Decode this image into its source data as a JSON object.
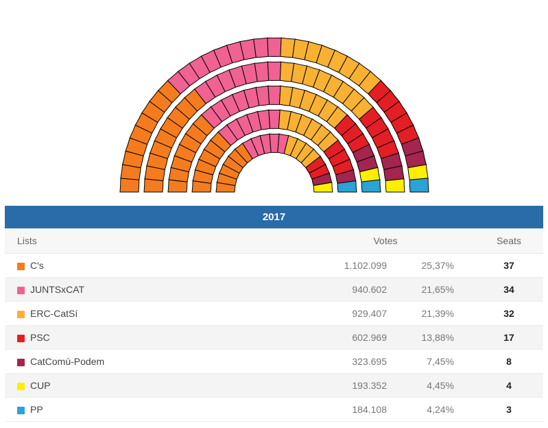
{
  "year": "2017",
  "header_bg": "#2a6ca8",
  "columns": {
    "lists": "Lists",
    "votes": "Votes",
    "seats": "Seats"
  },
  "parties": [
    {
      "name": "C's",
      "color": "#f57c1e",
      "votes": "1.102.099",
      "pct": "25,37%",
      "seats": 37
    },
    {
      "name": "JUNTSxCAT",
      "color": "#f06292",
      "votes": "940.602",
      "pct": "21,65%",
      "seats": 34
    },
    {
      "name": "ERC-CatSí",
      "color": "#f8b133",
      "votes": "929.407",
      "pct": "21,39%",
      "seats": 32
    },
    {
      "name": "PSC",
      "color": "#e31e24",
      "votes": "602.969",
      "pct": "13,88%",
      "seats": 17
    },
    {
      "name": "CatComú-Podem",
      "color": "#a4254f",
      "votes": "323.695",
      "pct": "7,45%",
      "seats": 8
    },
    {
      "name": "CUP",
      "color": "#ffee00",
      "votes": "193.352",
      "pct": "4,45%",
      "seats": 4
    },
    {
      "name": "PP",
      "color": "#2aa3d6",
      "votes": "184.108",
      "pct": "4,24%",
      "seats": 3
    }
  ],
  "chart": {
    "stroke": "#000000",
    "stroke_width": 1,
    "ring_gap": 8,
    "ring_thickness": 27,
    "inner_radius": 58,
    "rings": [
      {
        "seats": 19,
        "dist": [
          6,
          5,
          4,
          2,
          1,
          1,
          0
        ]
      },
      {
        "seats": 23,
        "dist": [
          6,
          6,
          6,
          3,
          1,
          0,
          1
        ]
      },
      {
        "seats": 27,
        "dist": [
          7,
          7,
          6,
          3,
          2,
          1,
          1
        ]
      },
      {
        "seats": 31,
        "dist": [
          9,
          7,
          8,
          4,
          2,
          1,
          0
        ]
      },
      {
        "seats": 35,
        "dist": [
          9,
          9,
          8,
          5,
          2,
          1,
          1
        ]
      }
    ]
  }
}
